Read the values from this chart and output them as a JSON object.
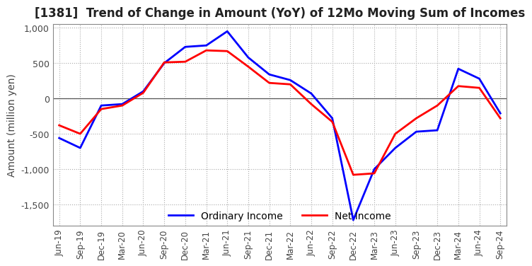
{
  "title": "[1381]  Trend of Change in Amount (YoY) of 12Mo Moving Sum of Incomes",
  "ylabel": "Amount (million yen)",
  "x_labels": [
    "Jun-19",
    "Sep-19",
    "Dec-19",
    "Mar-20",
    "Jun-20",
    "Sep-20",
    "Dec-20",
    "Mar-21",
    "Jun-21",
    "Sep-21",
    "Dec-21",
    "Mar-22",
    "Jun-22",
    "Sep-22",
    "Dec-22",
    "Mar-23",
    "Jun-23",
    "Sep-23",
    "Dec-23",
    "Mar-24",
    "Jun-24",
    "Sep-24"
  ],
  "ordinary_income": [
    -560,
    -700,
    -100,
    -80,
    100,
    500,
    730,
    750,
    950,
    580,
    340,
    260,
    70,
    -280,
    -1720,
    -1000,
    -700,
    -470,
    -450,
    420,
    280,
    -210
  ],
  "net_income": [
    -380,
    -500,
    -150,
    -100,
    80,
    510,
    520,
    680,
    670,
    450,
    220,
    200,
    -80,
    -330,
    -1080,
    -1060,
    -500,
    -280,
    -100,
    175,
    150,
    -280
  ],
  "ordinary_color": "#0000ff",
  "net_color": "#ff0000",
  "ylim": [
    -1800,
    1050
  ],
  "yticks": [
    -1500,
    -1000,
    -500,
    0,
    500,
    1000
  ],
  "grid_color": "#aaaaaa",
  "background_color": "#ffffff",
  "title_fontsize": 12,
  "axis_fontsize": 10,
  "legend_fontsize": 10,
  "linewidth": 2.0
}
